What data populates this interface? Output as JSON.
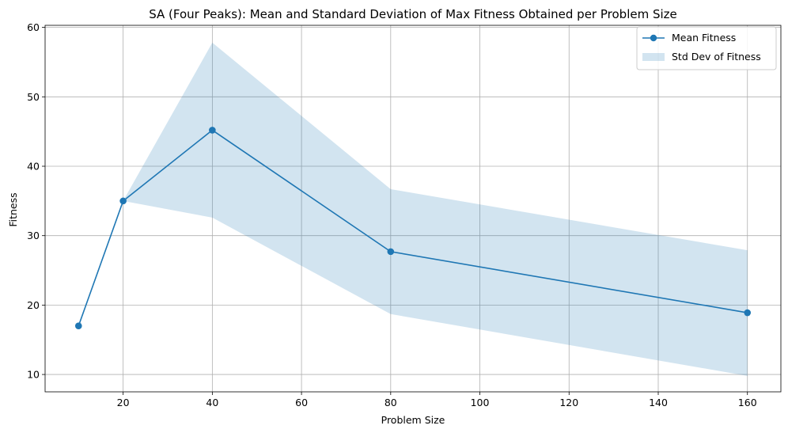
{
  "chart_data": {
    "type": "line",
    "title": "SA (Four Peaks): Mean and Standard Deviation of Max Fitness Obtained  per Problem Size",
    "xlabel": "Problem Size",
    "ylabel": "Fitness",
    "xlim": [
      2.5,
      167.5
    ],
    "ylim": [
      7.5,
      60.3
    ],
    "x_ticks": [
      20,
      40,
      60,
      80,
      100,
      120,
      140,
      160
    ],
    "y_ticks": [
      10,
      20,
      30,
      40,
      50,
      60
    ],
    "grid": true,
    "legend_position": "top-right",
    "x": [
      10,
      20,
      40,
      80,
      160
    ],
    "series": [
      {
        "name": "Mean Fitness",
        "kind": "line-marker",
        "color": "#1f77b4",
        "values": [
          17.0,
          35.0,
          45.2,
          27.7,
          18.9
        ]
      }
    ],
    "band": {
      "name": "Std Dev of Fitness",
      "color": "#1f77b4",
      "opacity": 0.2,
      "x": [
        20,
        40,
        80,
        160
      ],
      "lower": [
        35.0,
        32.6,
        18.7,
        9.8
      ],
      "upper": [
        35.0,
        57.8,
        36.7,
        27.9
      ]
    }
  }
}
